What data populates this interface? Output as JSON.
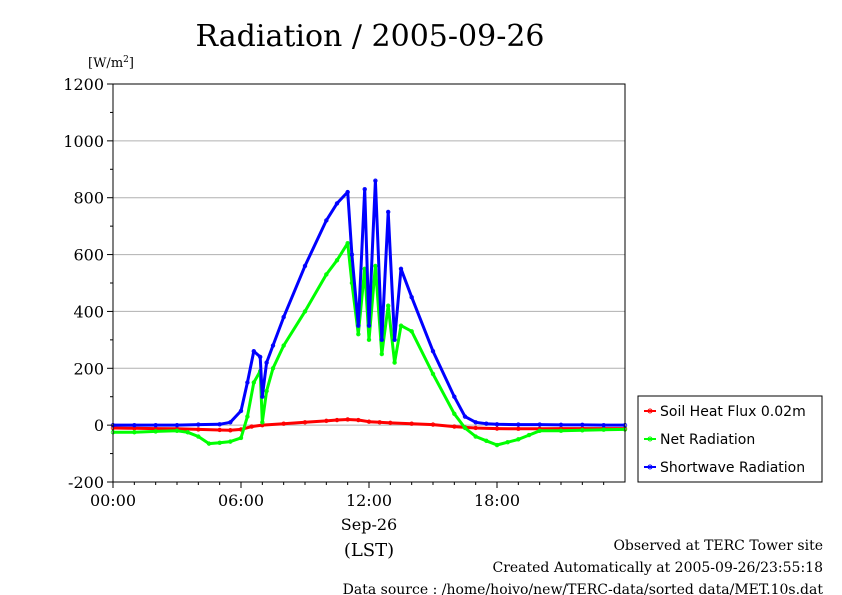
{
  "chart_data": {
    "type": "line",
    "title": "Radiation / 2005-09-26",
    "ylabel_unit": "[W/m",
    "ylabel_unit_sup": "2",
    "ylabel_unit_end": "]",
    "ylim": [
      -200,
      1200
    ],
    "yticks": [
      -200,
      0,
      200,
      400,
      600,
      800,
      1000,
      1200
    ],
    "yticks_labels": [
      "-200",
      "0",
      "200",
      "400",
      "600",
      "800",
      "1000",
      "1200"
    ],
    "xlim_hours": [
      0,
      24
    ],
    "xticks_hours": [
      0,
      6,
      12,
      18
    ],
    "xticks_labels": [
      "00:00",
      "06:00",
      "12:00",
      "18:00"
    ],
    "x_date_label": "Sep-26",
    "x_axis_label": "(LST)",
    "grid": "horizontal",
    "legend_position": "lower-right outside",
    "series": [
      {
        "name": "Soil Heat Flux 0.02m",
        "color": "#ff0000",
        "x": [
          0,
          1,
          2,
          3,
          4,
          5,
          5.5,
          6,
          6.5,
          7,
          8,
          9,
          10,
          10.5,
          11,
          11.5,
          12,
          12.5,
          13,
          14,
          15,
          16,
          16.5,
          17,
          18,
          19,
          20,
          21,
          22,
          23,
          24
        ],
        "y": [
          -10,
          -11,
          -12,
          -13,
          -15,
          -17,
          -18,
          -15,
          -5,
          0,
          5,
          10,
          15,
          18,
          20,
          18,
          12,
          10,
          8,
          5,
          2,
          -5,
          -8,
          -10,
          -12,
          -13,
          -13,
          -12,
          -12,
          -12,
          -12
        ]
      },
      {
        "name": "Net Radiation",
        "color": "#00ff00",
        "x": [
          0,
          1,
          2,
          3,
          3.5,
          4,
          4.5,
          5,
          5.5,
          6,
          6.3,
          6.6,
          6.9,
          7.0,
          7.2,
          7.5,
          8,
          9,
          10,
          10.5,
          11,
          11.2,
          11.5,
          11.8,
          12,
          12.3,
          12.6,
          12.9,
          13.2,
          13.5,
          14,
          15,
          16,
          16.5,
          17,
          17.5,
          18,
          18.5,
          19,
          19.5,
          20,
          21,
          22,
          23,
          24
        ],
        "y": [
          -25,
          -25,
          -22,
          -20,
          -25,
          -40,
          -65,
          -62,
          -58,
          -45,
          30,
          150,
          190,
          10,
          120,
          200,
          280,
          400,
          530,
          580,
          640,
          500,
          320,
          550,
          300,
          560,
          250,
          420,
          220,
          350,
          330,
          180,
          40,
          -10,
          -40,
          -55,
          -70,
          -60,
          -50,
          -35,
          -20,
          -20,
          -18,
          -16,
          -15
        ]
      },
      {
        "name": "Shortwave Radiation",
        "color": "#0000ff",
        "x": [
          0,
          1,
          2,
          3,
          4,
          5,
          5.5,
          6,
          6.3,
          6.6,
          6.9,
          7.0,
          7.2,
          7.5,
          8,
          9,
          10,
          10.5,
          11,
          11.2,
          11.5,
          11.8,
          12,
          12.3,
          12.6,
          12.9,
          13.2,
          13.5,
          14,
          15,
          16,
          16.5,
          17,
          17.5,
          18,
          19,
          20,
          21,
          22,
          23,
          24
        ],
        "y": [
          0,
          0,
          0,
          0,
          2,
          3,
          10,
          50,
          150,
          260,
          240,
          100,
          220,
          280,
          380,
          560,
          720,
          780,
          820,
          600,
          350,
          830,
          350,
          860,
          300,
          750,
          300,
          550,
          450,
          260,
          100,
          30,
          10,
          5,
          3,
          2,
          2,
          1,
          1,
          0,
          0
        ]
      }
    ]
  },
  "footer": {
    "line1": "Observed at TERC Tower site",
    "line2": "Created Automatically at 2005-09-26/23:55:18",
    "line3": "Data source : /home/hoivo/new/TERC-data/sorted  data/MET.10s.dat"
  }
}
